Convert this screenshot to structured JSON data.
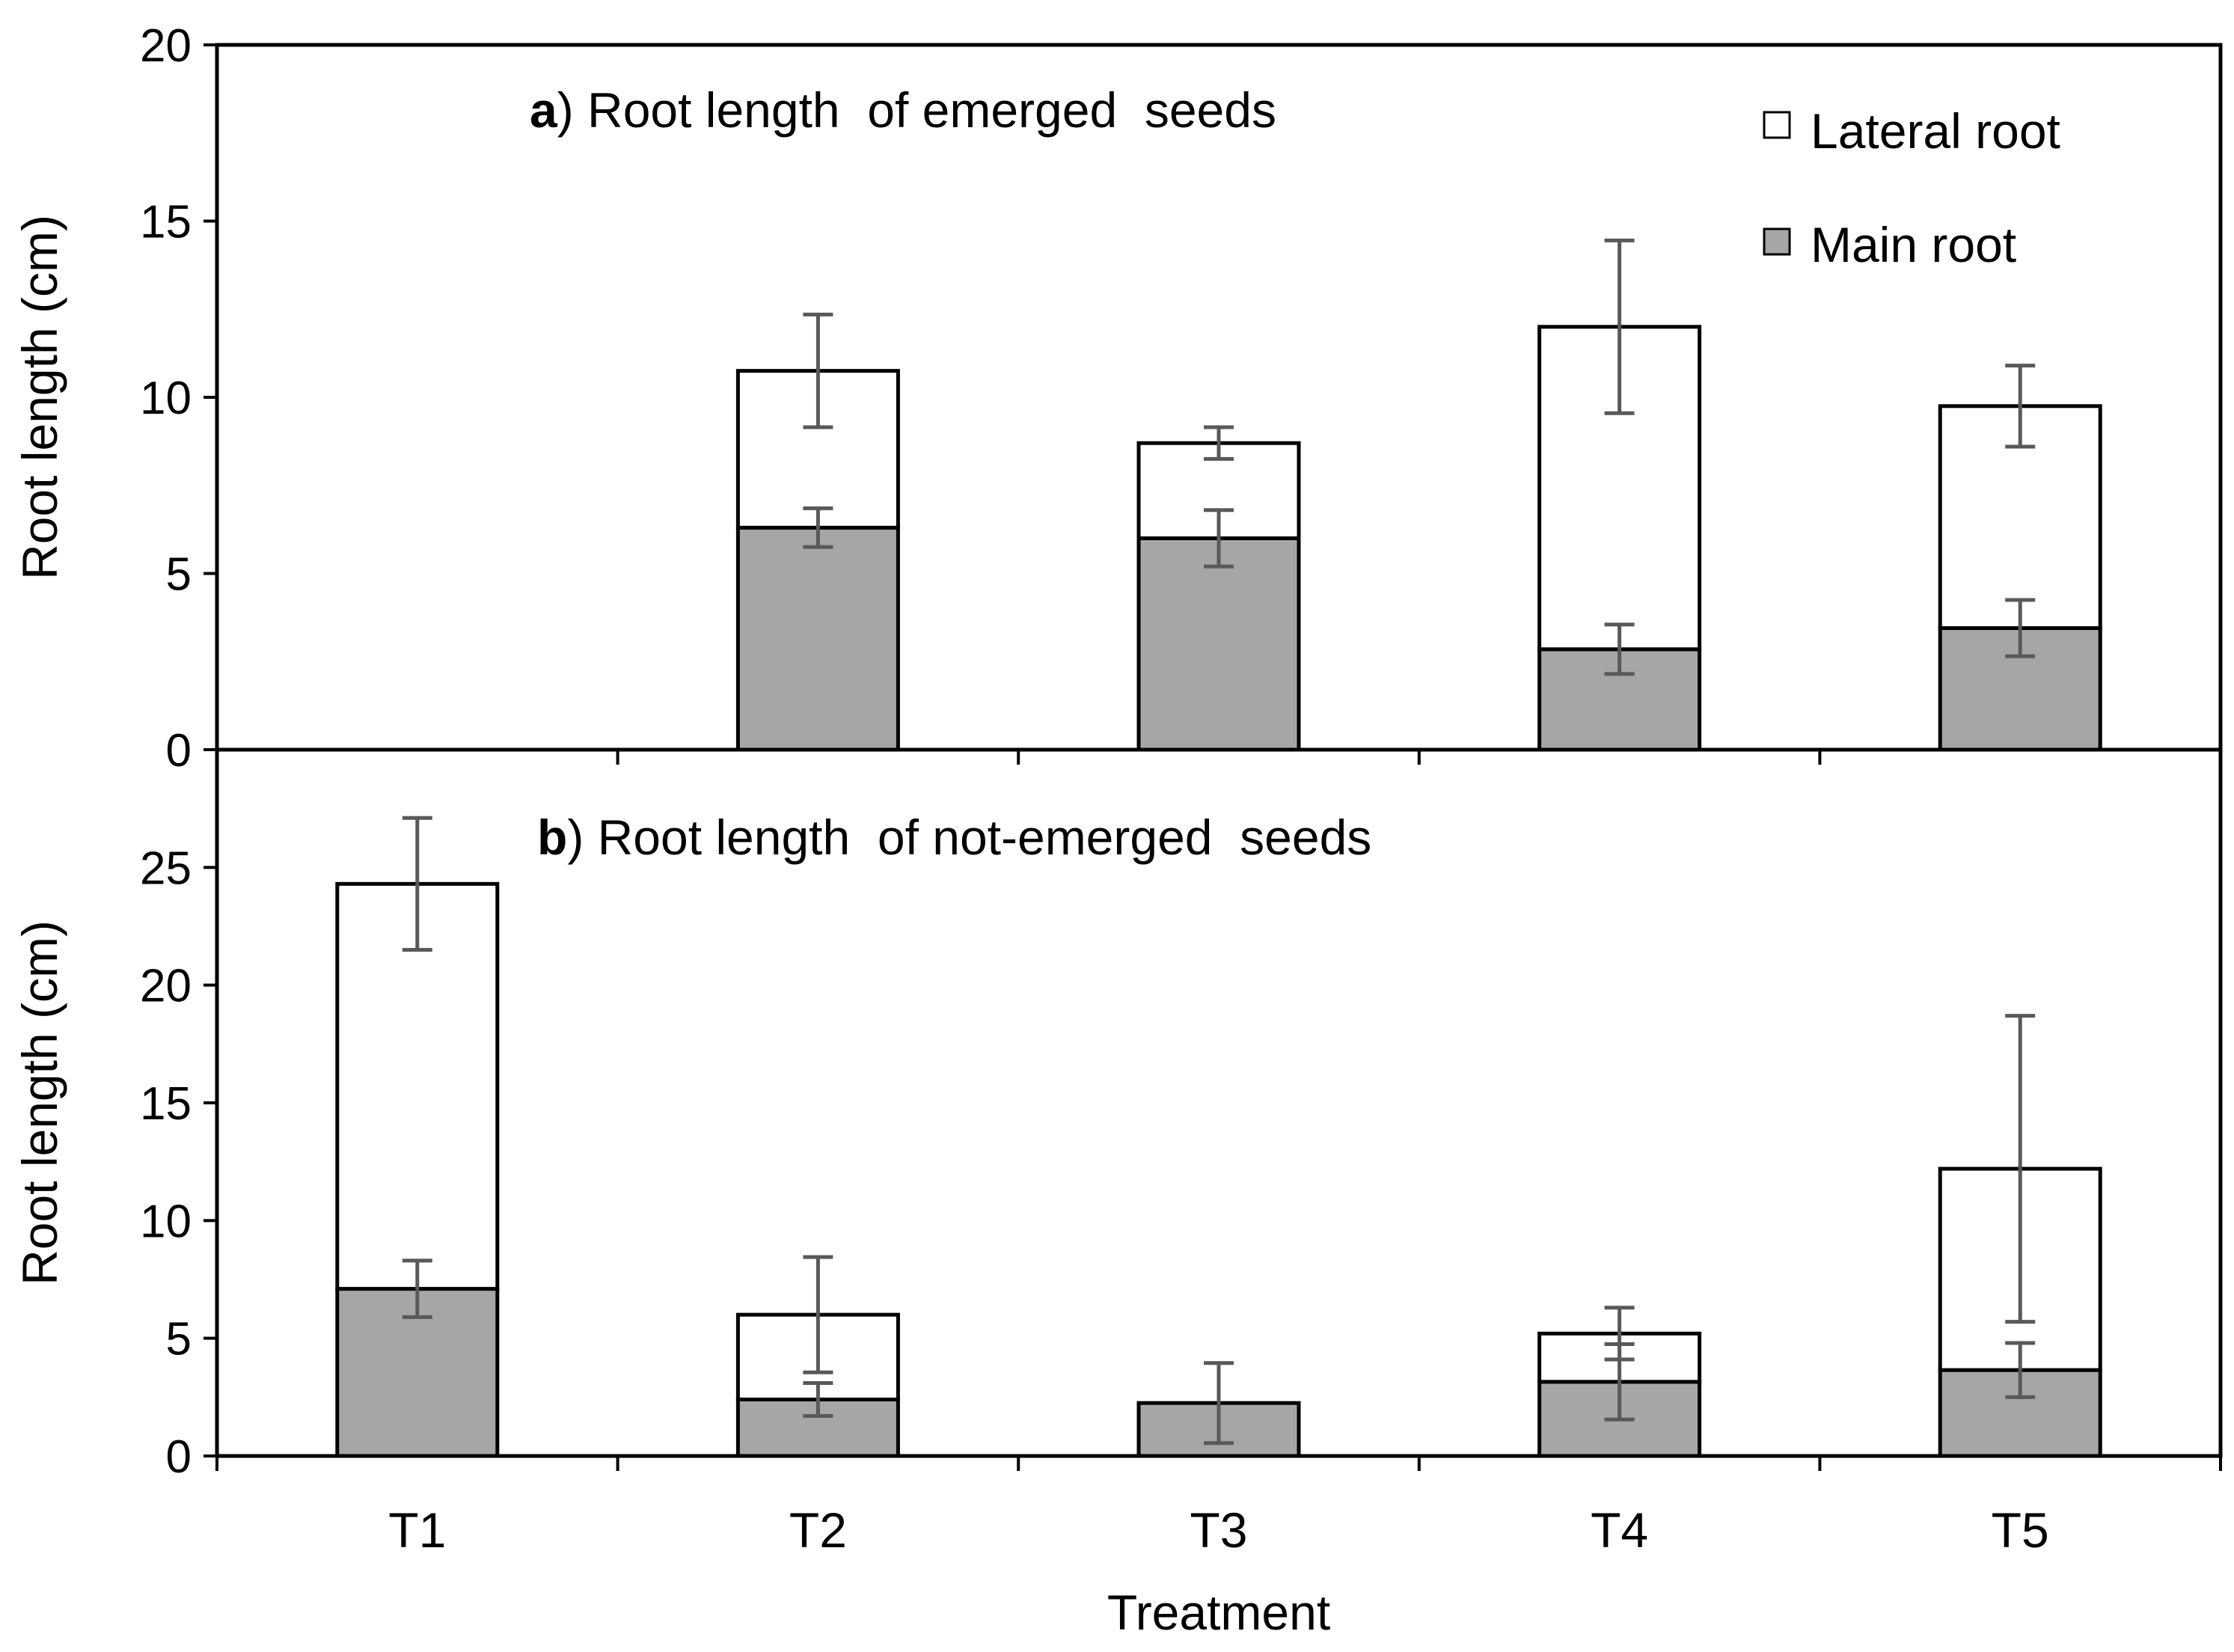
{
  "figure": {
    "xlabel": "Treatment",
    "categories": [
      "T1",
      "T2",
      "T3",
      "T4",
      "T5"
    ],
    "legend": {
      "placement": "top-right of panel a",
      "entries": [
        {
          "label": "Lateral root",
          "color": "#ffffff"
        },
        {
          "label": "Main root",
          "color": "#a6a6a6"
        }
      ]
    },
    "colors": {
      "lateral": "#ffffff",
      "main": "#a6a6a6",
      "error_bar": "#595959",
      "outline": "#000000"
    }
  },
  "chart_data": [
    {
      "type": "bar",
      "stacked": true,
      "panel_letter": "a",
      "title": ") Root length  of emerged  seeds",
      "ylabel": "Root length (cm)",
      "ylim": [
        0,
        20
      ],
      "yticks": [
        0,
        5,
        10,
        15,
        20
      ],
      "categories": [
        "T1",
        "T2",
        "T3",
        "T4",
        "T5"
      ],
      "series": [
        {
          "name": "Main root",
          "values": [
            null,
            6.3,
            6.0,
            2.85,
            3.45
          ],
          "error": [
            null,
            0.55,
            0.8,
            0.7,
            0.8
          ]
        },
        {
          "name": "Lateral root",
          "values": [
            null,
            4.45,
            2.7,
            9.15,
            6.3
          ],
          "error": [
            null,
            1.6,
            0.45,
            2.45,
            1.15
          ]
        }
      ]
    },
    {
      "type": "bar",
      "stacked": true,
      "panel_letter": "b",
      "title": ") Root length  of not-emerged  seeds",
      "ylabel": "Root length (cm)",
      "ylim": [
        0,
        30
      ],
      "yticks": [
        0,
        5,
        10,
        15,
        20,
        25
      ],
      "categories": [
        "T1",
        "T2",
        "T3",
        "T4",
        "T5"
      ],
      "series": [
        {
          "name": "Main root",
          "values": [
            7.1,
            2.4,
            2.25,
            3.15,
            3.65
          ],
          "error": [
            1.2,
            0.7,
            1.7,
            1.6,
            1.15
          ]
        },
        {
          "name": "Lateral root",
          "values": [
            17.2,
            3.6,
            0,
            2.05,
            8.55
          ],
          "error": [
            2.8,
            2.45,
            0,
            1.1,
            6.5
          ]
        }
      ]
    }
  ]
}
